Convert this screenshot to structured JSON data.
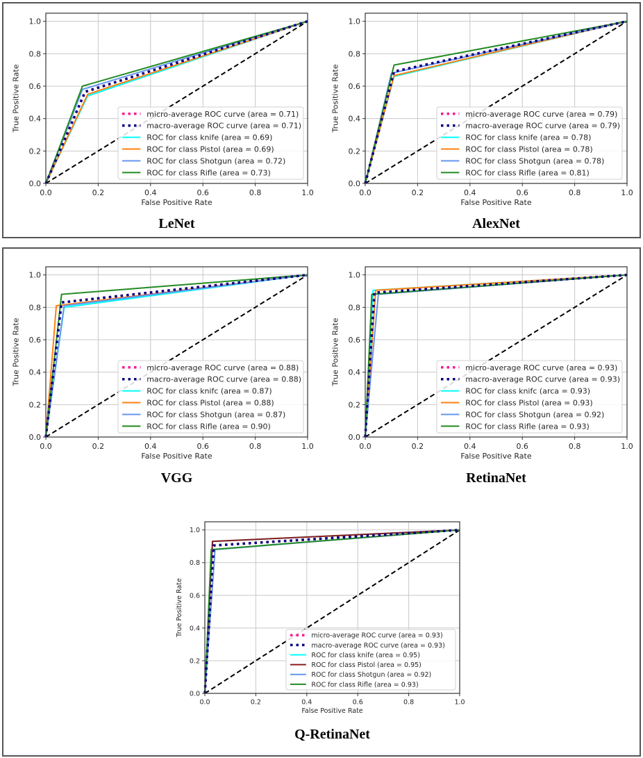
{
  "figure": {
    "description": "ROC curves for five weapon-detection models",
    "colors": {
      "micro": "#ff1493",
      "macro": "#000080",
      "knife": "#00ffff",
      "Pistol": "#ff7f0e",
      "Pistol_qretina": "#8b1a1a",
      "Shotgun": "#6495ed",
      "Rifle": "#228b22",
      "chance": "#000000",
      "grid": "#c8c8c8"
    }
  },
  "chart_data": [
    {
      "type": "line",
      "title": "LeNet",
      "xlabel": "False Positive Rate",
      "ylabel": "True Positive Rate",
      "xlim": [
        0.0,
        1.0
      ],
      "ylim": [
        0.0,
        1.05
      ],
      "xticks": [
        "0.0",
        "0.2",
        "0.4",
        "0.6",
        "0.8",
        "1.0"
      ],
      "yticks": [
        "0.0",
        "0.2",
        "0.4",
        "0.6",
        "0.8",
        "1.0"
      ],
      "grid": true,
      "legend_position": "lower-right",
      "series": [
        {
          "key": "micro",
          "name": "micro-average ROC curve (area = 0.71)",
          "style": "dotted",
          "x": [
            0,
            0.15,
            1
          ],
          "y": [
            0,
            0.565,
            1
          ]
        },
        {
          "key": "macro",
          "name": "macro-average ROC curve (area = 0.71)",
          "style": "dotted",
          "x": [
            0,
            0.15,
            1
          ],
          "y": [
            0,
            0.565,
            1
          ]
        },
        {
          "key": "knife",
          "name": "ROC for class knife (area = 0.69)",
          "style": "solid",
          "x": [
            0,
            0.16,
            1
          ],
          "y": [
            0,
            0.54,
            1
          ]
        },
        {
          "key": "Pistol",
          "name": "ROC for class Pistol (area = 0.69)",
          "style": "solid",
          "x": [
            0,
            0.16,
            1
          ],
          "y": [
            0,
            0.55,
            1
          ]
        },
        {
          "key": "Shotgun",
          "name": "ROC for class Shotgun (area = 0.72)",
          "style": "solid",
          "x": [
            0,
            0.14,
            1
          ],
          "y": [
            0,
            0.58,
            1
          ]
        },
        {
          "key": "Rifle",
          "name": "ROC for class Rifle (area = 0.73)",
          "style": "solid",
          "x": [
            0,
            0.14,
            1
          ],
          "y": [
            0,
            0.6,
            1
          ]
        }
      ]
    },
    {
      "type": "line",
      "title": "AlexNet",
      "xlabel": "False Positive Rate",
      "ylabel": "True Positive Rate",
      "xlim": [
        0.0,
        1.0
      ],
      "ylim": [
        0.0,
        1.05
      ],
      "xticks": [
        "0.0",
        "0.2",
        "0.4",
        "0.6",
        "0.8",
        "1.0"
      ],
      "yticks": [
        "0.0",
        "0.2",
        "0.4",
        "0.6",
        "0.8",
        "1.0"
      ],
      "grid": true,
      "legend_position": "lower-right",
      "series": [
        {
          "key": "micro",
          "name": "micro-average ROC curve (area = 0.79)",
          "style": "dotted",
          "x": [
            0,
            0.11,
            1
          ],
          "y": [
            0,
            0.69,
            1
          ]
        },
        {
          "key": "macro",
          "name": "macro-average ROC curve (area = 0.79)",
          "style": "dotted",
          "x": [
            0,
            0.11,
            1
          ],
          "y": [
            0,
            0.69,
            1
          ]
        },
        {
          "key": "knife",
          "name": "ROC for class knife (area = 0.78)",
          "style": "solid",
          "x": [
            0,
            0.11,
            1
          ],
          "y": [
            0,
            0.66,
            1
          ]
        },
        {
          "key": "Pistol",
          "name": "ROC for class Pistol (area = 0.78)",
          "style": "solid",
          "x": [
            0,
            0.11,
            1
          ],
          "y": [
            0,
            0.665,
            1
          ]
        },
        {
          "key": "Shotgun",
          "name": "ROC for class Shotgun (area = 0.78)",
          "style": "solid",
          "x": [
            0,
            0.1,
            1
          ],
          "y": [
            0,
            0.68,
            1
          ]
        },
        {
          "key": "Rifle",
          "name": "ROC for class Rifle (area = 0.81)",
          "style": "solid",
          "x": [
            0,
            0.11,
            1
          ],
          "y": [
            0,
            0.73,
            1
          ]
        }
      ]
    },
    {
      "type": "line",
      "title": "VGG",
      "xlabel": "False Positive Rate",
      "ylabel": "True Positive Rate",
      "xlim": [
        0.0,
        1.0
      ],
      "ylim": [
        0.0,
        1.05
      ],
      "xticks": [
        "0.0",
        "0.2",
        "0.4",
        "0.6",
        "0.8",
        "1.0"
      ],
      "yticks": [
        "0.0",
        "0.2",
        "0.4",
        "0.6",
        "0.8",
        "1.0"
      ],
      "grid": true,
      "legend_position": "lower-right",
      "series": [
        {
          "key": "micro",
          "name": "micro-average ROC curve (area = 0.88)",
          "style": "dotted",
          "x": [
            0,
            0.06,
            1
          ],
          "y": [
            0,
            0.83,
            1
          ]
        },
        {
          "key": "macro",
          "name": "macro-average ROC curve (area = 0.88)",
          "style": "dotted",
          "x": [
            0,
            0.06,
            1
          ],
          "y": [
            0,
            0.83,
            1
          ]
        },
        {
          "key": "knife",
          "name": "ROC for class knifc (area = 0.87)",
          "style": "solid",
          "x": [
            0,
            0.07,
            1
          ],
          "y": [
            0,
            0.8,
            1
          ]
        },
        {
          "key": "Pistol",
          "name": "ROC for class Pistol (area = 0.88)",
          "style": "solid",
          "x": [
            0,
            0.04,
            1
          ],
          "y": [
            0,
            0.81,
            1
          ]
        },
        {
          "key": "Shotgun",
          "name": "ROC for class Shotgun (area = 0.87)",
          "style": "solid",
          "x": [
            0,
            0.07,
            1
          ],
          "y": [
            0,
            0.81,
            1
          ]
        },
        {
          "key": "Rifle",
          "name": "ROC for class Rifle (area = 0.90)",
          "style": "solid",
          "x": [
            0,
            0.06,
            1
          ],
          "y": [
            0,
            0.88,
            1
          ]
        }
      ]
    },
    {
      "type": "line",
      "title": "RetinaNet",
      "xlabel": "False Positive Rate",
      "ylabel": "True Positive Rate",
      "xlim": [
        0.0,
        1.0
      ],
      "ylim": [
        0.0,
        1.05
      ],
      "xticks": [
        "0.0",
        "0.2",
        "0.4",
        "0.6",
        "0.8",
        "1.0"
      ],
      "yticks": [
        "0.0",
        "0.2",
        "0.4",
        "0.6",
        "0.8",
        "1.0"
      ],
      "grid": true,
      "legend_position": "lower-right",
      "series": [
        {
          "key": "micro",
          "name": "micro-average ROC curve (area = 0.93)",
          "style": "dotted",
          "x": [
            0,
            0.035,
            1
          ],
          "y": [
            0,
            0.89,
            1
          ]
        },
        {
          "key": "macro",
          "name": "macro-average ROC curve (area = 0.93)",
          "style": "dotted",
          "x": [
            0,
            0.035,
            1
          ],
          "y": [
            0,
            0.89,
            1
          ]
        },
        {
          "key": "knife",
          "name": "ROC for class knifc (arca = 0.93)",
          "style": "solid",
          "x": [
            0,
            0.03,
            1
          ],
          "y": [
            0,
            0.905,
            1
          ]
        },
        {
          "key": "Pistol",
          "name": "ROC for class Pistol (area = 0.93)",
          "style": "solid",
          "x": [
            0,
            0.04,
            1
          ],
          "y": [
            0,
            0.905,
            1
          ]
        },
        {
          "key": "Shotgun",
          "name": "ROC for class Shotgun (area = 0.92)",
          "style": "solid",
          "x": [
            0,
            0.05,
            1
          ],
          "y": [
            0,
            0.88,
            1
          ]
        },
        {
          "key": "Rifle",
          "name": "ROC for class Rifle (area = 0.93)",
          "style": "solid",
          "x": [
            0,
            0.025,
            1
          ],
          "y": [
            0,
            0.88,
            1
          ]
        }
      ]
    },
    {
      "type": "line",
      "title": "Q-RetinaNet",
      "xlabel": "False Positive Rate",
      "ylabel": "True Positive Rate",
      "xlim": [
        0.0,
        1.0
      ],
      "ylim": [
        0.0,
        1.05
      ],
      "xticks": [
        "0.0",
        "0.2",
        "0.4",
        "0.6",
        "0.8",
        "1.0"
      ],
      "yticks": [
        "0.0",
        "0.2",
        "0.4",
        "0.6",
        "0.8",
        "1.0"
      ],
      "grid": true,
      "legend_position": "lower-right",
      "series": [
        {
          "key": "micro",
          "name": "micro-average ROC curve (area = 0.93)",
          "style": "dotted",
          "x": [
            0,
            0.035,
            1
          ],
          "y": [
            0,
            0.905,
            1
          ]
        },
        {
          "key": "macro",
          "name": "macro-average ROC curve (area = 0.93)",
          "style": "dotted",
          "x": [
            0,
            0.035,
            1
          ],
          "y": [
            0,
            0.905,
            1
          ]
        },
        {
          "key": "knife",
          "name": "ROC for class knife (area = 0.95)",
          "style": "solid",
          "x": [
            0,
            0.03,
            1
          ],
          "y": [
            0,
            0.93,
            1
          ]
        },
        {
          "key": "Pistol_qretina",
          "name": "ROC for class Pistol (area = 0.95)",
          "style": "solid",
          "x": [
            0,
            0.03,
            1
          ],
          "y": [
            0,
            0.93,
            1
          ]
        },
        {
          "key": "Shotgun",
          "name": "ROC for class Shotgun (area = 0.92)",
          "style": "solid",
          "x": [
            0,
            0.04,
            1
          ],
          "y": [
            0,
            0.88,
            1
          ]
        },
        {
          "key": "Rifle",
          "name": "ROC for class Rifle (area = 0.93)",
          "style": "solid",
          "x": [
            0,
            0.025,
            1
          ],
          "y": [
            0,
            0.88,
            1
          ]
        }
      ]
    }
  ]
}
